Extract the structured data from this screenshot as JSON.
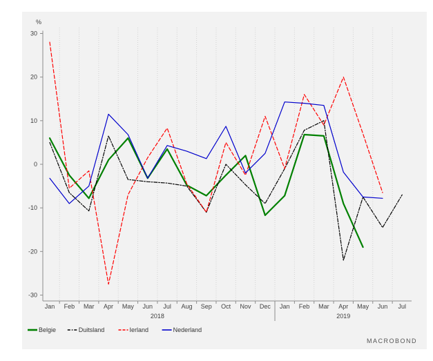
{
  "chart_data": {
    "type": "line",
    "yunit": "%",
    "ylim": [
      -30,
      30
    ],
    "yticks": [
      30,
      20,
      10,
      0,
      -10,
      -20,
      -30
    ],
    "categories": [
      "Jan",
      "Feb",
      "Mar",
      "Apr",
      "May",
      "Jun",
      "Jul",
      "Aug",
      "Sep",
      "Oct",
      "Nov",
      "Dec",
      "Jan",
      "Feb",
      "Mar",
      "Apr",
      "May",
      "Jun",
      "Jul"
    ],
    "years": [
      {
        "label": "2018",
        "start": 0,
        "end": 11
      },
      {
        "label": "2019",
        "start": 12,
        "end": 18
      }
    ],
    "grid": "vertical-dotted",
    "legend_position": "bottom-left",
    "series": [
      {
        "name": "Belgie",
        "color": "#008000",
        "style": "solid",
        "width": 2.2,
        "values": [
          6.0,
          -2.5,
          -7.8,
          1.0,
          6.0,
          -3.2,
          3.5,
          -4.8,
          -7.2,
          -2.5,
          2.0,
          -11.7,
          -7.2,
          6.8,
          6.5,
          -9.0,
          -19.0,
          null,
          null
        ]
      },
      {
        "name": "Duitsland",
        "color": "#000000",
        "style": "dashdot",
        "width": 1.2,
        "values": [
          5.0,
          -6.5,
          -10.7,
          6.5,
          -3.5,
          -4.0,
          -4.3,
          -5.0,
          -11.0,
          0.0,
          -4.7,
          -9.0,
          -1.0,
          7.8,
          10.0,
          -22.0,
          -7.5,
          -14.5,
          -7.0
        ]
      },
      {
        "name": "Ierland",
        "color": "#ff0000",
        "style": "dashed",
        "width": 1.2,
        "values": [
          28.0,
          -5.5,
          -1.5,
          -27.5,
          -7.0,
          1.5,
          8.3,
          -4.5,
          -11.0,
          5.0,
          -2.5,
          11.0,
          -1.0,
          16.0,
          9.0,
          20.0,
          7.0,
          -6.5,
          null
        ]
      },
      {
        "name": "Nederland",
        "color": "#0000cc",
        "style": "solid",
        "width": 1.2,
        "values": [
          -3.2,
          -9.0,
          -5.0,
          11.5,
          6.8,
          -3.2,
          4.3,
          3.0,
          1.3,
          8.7,
          -2.0,
          2.5,
          14.3,
          14.0,
          13.5,
          -1.8,
          -7.5,
          -7.8,
          null
        ]
      }
    ]
  },
  "watermark": "MACROBOND"
}
